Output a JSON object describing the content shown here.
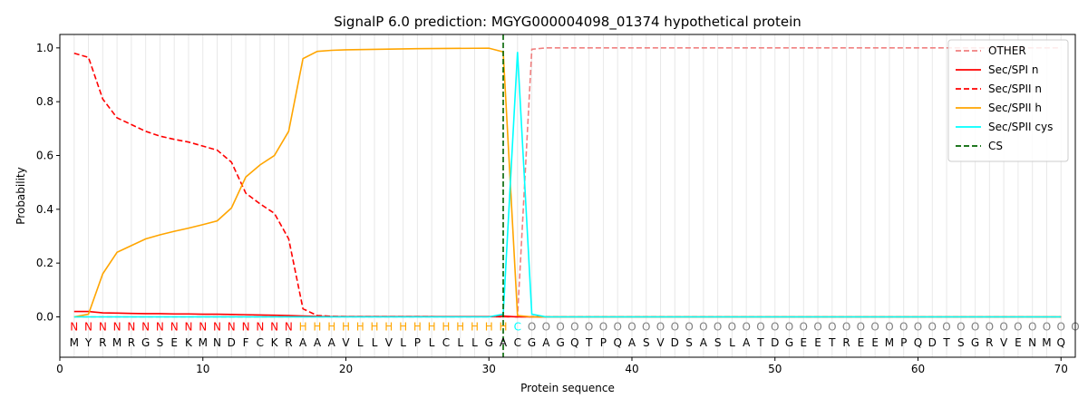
{
  "chart_data": {
    "type": "line",
    "title": "SignalP 6.0 prediction: MGYG000004098_01374 hypothetical protein",
    "xlabel": "Protein sequence",
    "ylabel": "Probability",
    "xlim": [
      0,
      71
    ],
    "ylim": [
      -0.15,
      1.05
    ],
    "xticks": [
      0,
      10,
      20,
      30,
      40,
      50,
      60,
      70
    ],
    "yticks": [
      0.0,
      0.2,
      0.4,
      0.6,
      0.8,
      1.0
    ],
    "legend_position": "top-right",
    "sequence": [
      "M",
      "Y",
      "R",
      "M",
      "R",
      "G",
      "S",
      "E",
      "K",
      "M",
      "N",
      "D",
      "F",
      "C",
      "K",
      "R",
      "A",
      "A",
      "A",
      "V",
      "L",
      "L",
      "V",
      "L",
      "P",
      "L",
      "C",
      "L",
      "L",
      "G",
      "A",
      "C",
      "G",
      "A",
      "G",
      "Q",
      "T",
      "P",
      "Q",
      "A",
      "S",
      "V",
      "D",
      "S",
      "A",
      "S",
      "L",
      "A",
      "T",
      "D",
      "G",
      "E",
      "E",
      "T",
      "R",
      "E",
      "E",
      "M",
      "P",
      "Q",
      "D",
      "T",
      "S",
      "G",
      "R",
      "V",
      "E",
      "N",
      "M",
      "Q"
    ],
    "labels": [
      "N",
      "N",
      "N",
      "N",
      "N",
      "N",
      "N",
      "N",
      "N",
      "N",
      "N",
      "N",
      "N",
      "N",
      "N",
      "N",
      "H",
      "H",
      "H",
      "H",
      "H",
      "H",
      "H",
      "H",
      "H",
      "H",
      "H",
      "H",
      "H",
      "H",
      "H",
      "C",
      "O",
      "O",
      "O",
      "O",
      "O",
      "O",
      "O",
      "O",
      "O",
      "O",
      "O",
      "O",
      "O",
      "O",
      "O",
      "O",
      "O",
      "O",
      "O",
      "O",
      "O",
      "O",
      "O",
      "O",
      "O",
      "O",
      "O",
      "O",
      "O",
      "O",
      "O",
      "O",
      "O",
      "O",
      "O",
      "O",
      "O",
      "O",
      "O"
    ],
    "label_colors": {
      "N": "#ff0000",
      "H": "#ffa500",
      "C": "#00ffff",
      "O": "#808080"
    },
    "series": [
      {
        "name": "OTHER",
        "color": "#f08080",
        "dash": "dashed",
        "x": [
          1,
          31,
          32,
          33,
          34,
          70
        ],
        "y": [
          0.0,
          0.0,
          0.0,
          0.995,
          1.0,
          1.0
        ]
      },
      {
        "name": "Sec/SPI n",
        "color": "#ff0000",
        "dash": "solid",
        "x": [
          1,
          2,
          3,
          4,
          5,
          6,
          7,
          8,
          9,
          10,
          11,
          12,
          13,
          14,
          15,
          16,
          17,
          18,
          19,
          20,
          25,
          30,
          31,
          32,
          33,
          70
        ],
        "y": [
          0.02,
          0.02,
          0.015,
          0.014,
          0.013,
          0.012,
          0.012,
          0.011,
          0.011,
          0.01,
          0.01,
          0.009,
          0.008,
          0.007,
          0.006,
          0.005,
          0.003,
          0.002,
          0.001,
          0.001,
          0.001,
          0.001,
          0.003,
          0.0,
          0.0,
          0.0
        ]
      },
      {
        "name": "Sec/SPII n",
        "color": "#ff0000",
        "dash": "dashed",
        "x": [
          1,
          2,
          3,
          4,
          5,
          6,
          7,
          8,
          9,
          10,
          11,
          12,
          13,
          14,
          15,
          16,
          17,
          18,
          19,
          20,
          70
        ],
        "y": [
          0.98,
          0.965,
          0.81,
          0.74,
          0.715,
          0.69,
          0.672,
          0.66,
          0.65,
          0.635,
          0.62,
          0.575,
          0.46,
          0.42,
          0.385,
          0.29,
          0.03,
          0.005,
          0.002,
          0.001,
          0.0
        ]
      },
      {
        "name": "Sec/SPII h",
        "color": "#ffa500",
        "dash": "solid",
        "x": [
          1,
          2,
          3,
          4,
          5,
          6,
          7,
          8,
          9,
          10,
          11,
          12,
          13,
          14,
          15,
          16,
          17,
          18,
          19,
          20,
          25,
          30,
          31,
          32,
          33,
          70
        ],
        "y": [
          0.0,
          0.01,
          0.16,
          0.24,
          0.265,
          0.29,
          0.305,
          0.318,
          0.33,
          0.343,
          0.357,
          0.405,
          0.52,
          0.565,
          0.6,
          0.69,
          0.96,
          0.987,
          0.991,
          0.993,
          0.997,
          0.999,
          0.985,
          0.005,
          0.0,
          0.0
        ]
      },
      {
        "name": "Sec/SPII cys",
        "color": "#00ffff",
        "dash": "solid",
        "x": [
          1,
          30,
          31,
          32,
          33,
          34,
          70
        ],
        "y": [
          0.0,
          0.0,
          0.01,
          0.985,
          0.01,
          0.0,
          0.0
        ]
      },
      {
        "name": "CS",
        "color": "#006400",
        "dash": "dashed",
        "vline": 31
      }
    ]
  }
}
